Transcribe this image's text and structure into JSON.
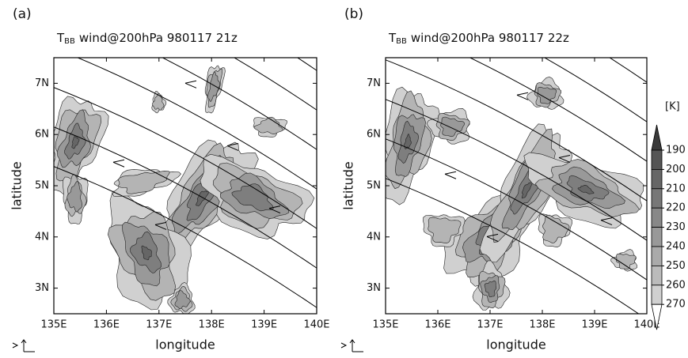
{
  "chart_data": [
    {
      "type": "contour",
      "panel_label": "(a)",
      "title": {
        "symbol": "T",
        "subscript": "BB",
        "text": "wind@200hPa 980117 21z"
      },
      "x_label": "longitude",
      "y_label": "latitude",
      "xlim": [
        135,
        140
      ],
      "ylim": [
        2.5,
        7.5
      ],
      "xticks": [
        {
          "value": 135,
          "label": "135E"
        },
        {
          "value": 136,
          "label": "136E"
        },
        {
          "value": 137,
          "label": "137E"
        },
        {
          "value": 138,
          "label": "138E"
        },
        {
          "value": 139,
          "label": "139E"
        },
        {
          "value": 140,
          "label": "140E"
        }
      ],
      "yticks": [
        {
          "value": 3,
          "label": "3N"
        },
        {
          "value": 4,
          "label": "4N"
        },
        {
          "value": 5,
          "label": "5N"
        },
        {
          "value": 6,
          "label": "6N"
        },
        {
          "value": 7,
          "label": "7N"
        }
      ]
    },
    {
      "type": "contour",
      "panel_label": "(b)",
      "title": {
        "symbol": "T",
        "subscript": "BB",
        "text": "wind@200hPa 980117 22z"
      },
      "x_label": "longitude",
      "y_label": "latitude",
      "xlim": [
        135,
        140
      ],
      "ylim": [
        2.5,
        7.5
      ],
      "xticks": [
        {
          "value": 135,
          "label": "135E"
        },
        {
          "value": 136,
          "label": "136E"
        },
        {
          "value": 137,
          "label": "137E"
        },
        {
          "value": 138,
          "label": "138E"
        },
        {
          "value": 139,
          "label": "139E"
        },
        {
          "value": 140,
          "label": "140E"
        }
      ],
      "yticks": [
        {
          "value": 3,
          "label": "3N"
        },
        {
          "value": 4,
          "label": "4N"
        },
        {
          "value": 5,
          "label": "5N"
        },
        {
          "value": 6,
          "label": "6N"
        },
        {
          "value": 7,
          "label": "7N"
        }
      ],
      "colorbar": {
        "label": "[K]",
        "levels": [
          190,
          200,
          210,
          220,
          230,
          240,
          250,
          260,
          270
        ],
        "colors": [
          "#3a3a3a",
          "#555555",
          "#666666",
          "#777777",
          "#888888",
          "#999999",
          "#aaaaaa",
          "#bbbbbb",
          "#d0d0d0",
          "#ffffff"
        ]
      }
    }
  ]
}
